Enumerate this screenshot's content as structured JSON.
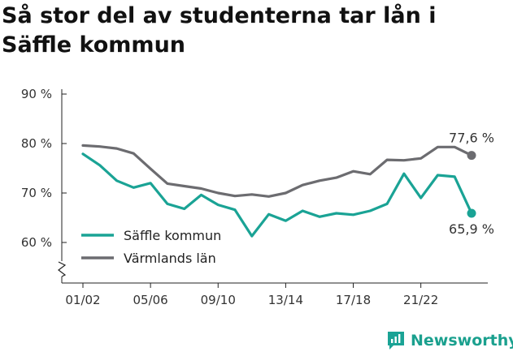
{
  "title": "Så stor del av studenterna tar lån i Säffle kommun",
  "brand": {
    "name": "Newsworthy",
    "icon": "newsworthy-logo-icon"
  },
  "colors": {
    "saffle": "#1aa395",
    "varmland": "#6c6c70",
    "axis": "#222222",
    "grid": "#dddddd"
  },
  "chart_data": {
    "type": "line",
    "ylim": [
      52,
      92
    ],
    "yticks": [
      90,
      80,
      70,
      60
    ],
    "ytick_labels": [
      "90 %",
      "80 %",
      "70 %",
      "60 %"
    ],
    "y_axis_break": true,
    "x_tick_labels": [
      "01/02",
      "05/06",
      "09/10",
      "13/14",
      "17/18",
      "21/22"
    ],
    "x_tick_indices": [
      0,
      4,
      8,
      12,
      16,
      20
    ],
    "grid": false,
    "legend_position": "bottom-left",
    "series": [
      {
        "name": "Säffle kommun",
        "color": "#1aa395",
        "values": [
          77.9,
          75.6,
          72.5,
          71.1,
          72.0,
          67.8,
          66.8,
          69.6,
          67.6,
          66.6,
          61.3,
          65.7,
          64.4,
          66.4,
          65.2,
          65.9,
          65.6,
          66.4,
          67.8,
          73.9,
          69.0,
          73.6,
          73.3,
          65.9
        ],
        "end_label": "65,9 %"
      },
      {
        "name": "Värmlands län",
        "color": "#6c6c70",
        "values": [
          79.6,
          79.4,
          79.0,
          78.0,
          74.9,
          71.9,
          71.4,
          70.9,
          70.0,
          69.4,
          69.7,
          69.3,
          70.0,
          71.6,
          72.5,
          73.1,
          74.4,
          73.8,
          76.7,
          76.6,
          77.0,
          79.3,
          79.3,
          77.6
        ],
        "end_label": "77,6 %"
      }
    ]
  }
}
